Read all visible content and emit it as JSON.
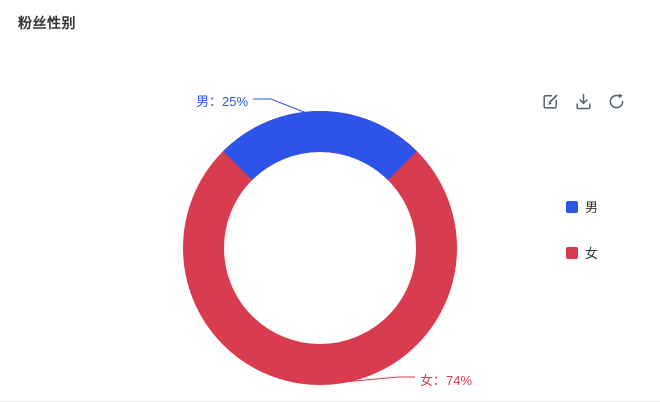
{
  "page": {
    "title": "粉丝性别"
  },
  "toolbar": {
    "icons": [
      {
        "name": "edit-icon"
      },
      {
        "name": "download-icon"
      },
      {
        "name": "refresh-icon"
      }
    ]
  },
  "chart_data": {
    "type": "pie",
    "donut": true,
    "title": "粉丝性别",
    "legend_position": "right",
    "legend": [
      "男",
      "女"
    ],
    "series": [
      {
        "name": "男",
        "value": 25,
        "percent_label": "男：25%",
        "color": "#2d54e8"
      },
      {
        "name": "女",
        "value": 74,
        "percent_label": "女：74%",
        "color": "#d93b4f"
      }
    ]
  },
  "legend": {
    "items": [
      {
        "label": "男",
        "color": "#2d54e8"
      },
      {
        "label": "女",
        "color": "#d93b4f"
      }
    ]
  }
}
